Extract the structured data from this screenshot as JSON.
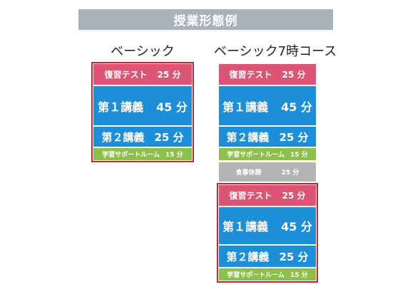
{
  "header": {
    "title": "授業形態例"
  },
  "columns": [
    {
      "title": "ベーシック",
      "blocks": [
        {
          "name": "復習テスト",
          "duration": "25 分"
        },
        {
          "name": "第１講義",
          "duration": "45 分"
        },
        {
          "name": "第２講義",
          "duration": "25 分"
        },
        {
          "name": "学習サポートルーム",
          "duration": "15 分"
        }
      ]
    },
    {
      "title": "ベーシック7時コース",
      "blocks": [
        {
          "name": "復習テスト",
          "duration": "25 分"
        },
        {
          "name": "第１講義",
          "duration": "45 分"
        },
        {
          "name": "第２講義",
          "duration": "25 分"
        },
        {
          "name": "学習サポートルーム",
          "duration": "15 分"
        },
        {
          "name": "食事休憩",
          "duration": "25 分"
        },
        {
          "name": "復習テスト",
          "duration": "25 分"
        },
        {
          "name": "第１講義",
          "duration": "45 分"
        },
        {
          "name": "第２講義",
          "duration": "25 分"
        },
        {
          "name": "学習サポートルーム",
          "duration": "15 分"
        }
      ]
    }
  ],
  "colors": {
    "banner": "#a9b1b9",
    "review_test": "#dd5574",
    "lecture": "#1d8ed8",
    "support_room": "#8cc04b",
    "meal_break": "#b4b4b4",
    "frame": "#d8202d"
  }
}
